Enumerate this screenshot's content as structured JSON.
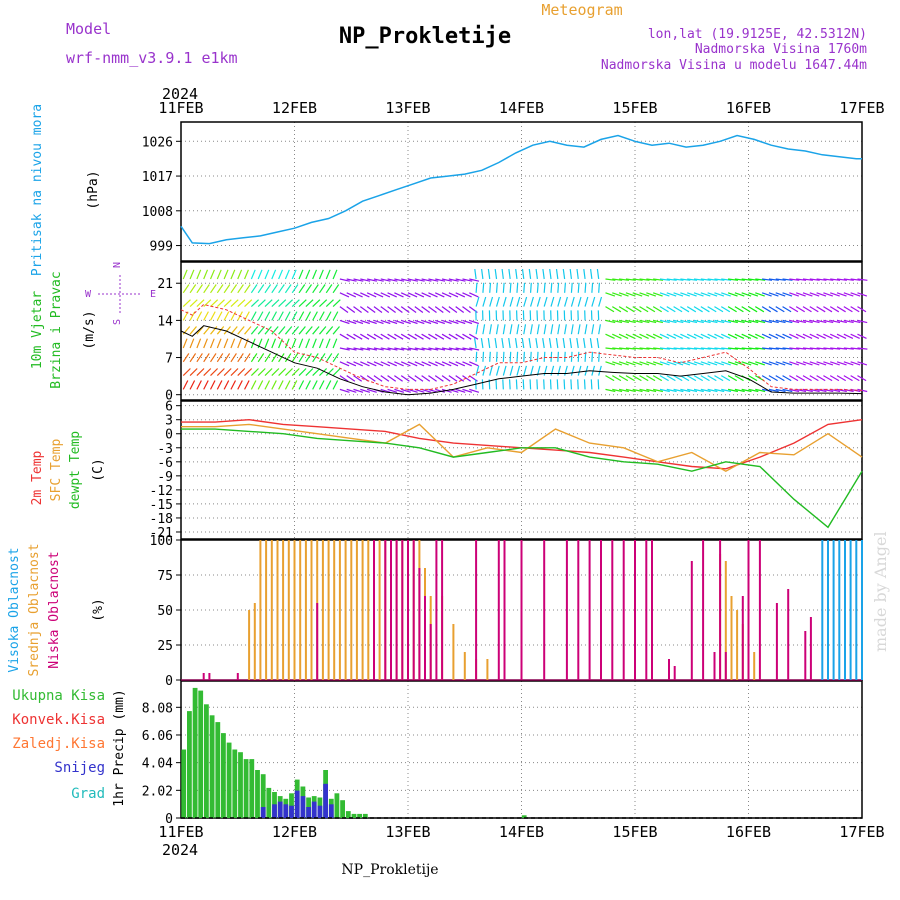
{
  "header": {
    "model_label": "Model",
    "model_name": "wrf-nmm_v3.9.1 e1km",
    "title": "NP_Prokletije",
    "meteogram": "Meteogram",
    "lonlat": "lon,lat (19.9125E, 42.5312N)",
    "altitude": "Nadmorska Visina 1760m",
    "model_altitude": "Nadmorska Visina u modelu 1647.44m",
    "watermark": "made by Angel",
    "footer_station": "NP_Prokletije"
  },
  "colors": {
    "pressure": "#1aa3e8",
    "wind_label": "#22bb22",
    "dir_label": "#9933cc",
    "temp2m": "#ee3333",
    "sfc": "#e8a030",
    "dew": "#22bb22",
    "high_cloud": "#1aa3e8",
    "mid_cloud": "#e8a030",
    "low_cloud": "#cc0077",
    "rain_total": "#33bb33",
    "rain_conv": "#ee3333",
    "rain_frozen": "#ff7733",
    "snow": "#3333cc",
    "hail": "#22bbbb"
  },
  "chart_data": {
    "x_axis": {
      "year": "2024",
      "ticks": [
        "11FEB",
        "12FEB",
        "13FEB",
        "14FEB",
        "15FEB",
        "16FEB",
        "17FEB"
      ],
      "range_days": [
        0,
        6
      ]
    },
    "panels": [
      {
        "id": "pressure",
        "type": "line",
        "ylabel": [
          "Pritisak na nivou mora",
          "(hPa)"
        ],
        "yticks": [
          999,
          1008,
          1017,
          1026
        ],
        "ylim": [
          995,
          1031
        ],
        "series": [
          {
            "x": [
              0,
              0.1,
              0.25,
              0.4,
              0.55,
              0.7,
              0.85,
              1.0,
              1.15,
              1.3,
              1.45,
              1.6,
              1.75,
              1.9,
              2.05,
              2.2,
              2.35,
              2.5,
              2.65,
              2.8,
              2.95,
              3.1,
              3.25,
              3.4,
              3.55,
              3.7,
              3.85,
              4.0,
              4.15,
              4.3,
              4.45,
              4.6,
              4.75,
              4.9,
              5.05,
              5.2,
              5.35,
              5.5,
              5.65,
              5.8,
              5.95,
              6.0
            ],
            "y": [
              1004,
              999.7,
              999.5,
              1000.5,
              1001,
              1001.5,
              1002.5,
              1003.5,
              1005,
              1006,
              1008,
              1010.5,
              1012,
              1013.5,
              1015,
              1016.5,
              1017,
              1017.5,
              1018.5,
              1020.5,
              1023,
              1025,
              1026,
              1025,
              1024.5,
              1026.5,
              1027.5,
              1026,
              1025,
              1025.5,
              1024.5,
              1025,
              1026,
              1027.5,
              1026.5,
              1025,
              1024,
              1023.5,
              1022.5,
              1022,
              1021.5,
              1021.5
            ]
          }
        ]
      },
      {
        "id": "wind",
        "type": "line",
        "ylabel": [
          "10m Vjetar",
          "Brzina i Pravac",
          "(m/s)"
        ],
        "direction_legend": {
          "w": "W",
          "e": "E",
          "n": "N",
          "s": "S"
        },
        "yticks": [
          0,
          7,
          14,
          21
        ],
        "ylim": [
          -1,
          25
        ],
        "series": [
          {
            "kind": "mean",
            "x": [
              0,
              0.1,
              0.2,
              0.4,
              0.6,
              0.8,
              1.0,
              1.2,
              1.4,
              1.6,
              1.8,
              2.0,
              2.2,
              2.4,
              2.6,
              2.8,
              3.0,
              3.2,
              3.4,
              3.6,
              3.8,
              4.0,
              4.2,
              4.4,
              4.6,
              4.8,
              5.0,
              5.2,
              5.4,
              5.6,
              5.8,
              6.0
            ],
            "y": [
              12,
              11,
              13,
              12,
              10,
              8,
              6,
              5,
              3,
              1.5,
              0.5,
              0,
              0.3,
              1,
              2,
              3,
              3.5,
              4,
              4,
              4.5,
              4.2,
              4,
              4,
              3.5,
              4,
              4.5,
              3,
              0.5,
              0.3,
              0.3,
              0.3,
              0.2
            ]
          },
          {
            "kind": "gust",
            "x": [
              0,
              0.1,
              0.2,
              0.4,
              0.6,
              0.8,
              1.0,
              1.2,
              1.4,
              1.6,
              1.8,
              2.0,
              2.2,
              2.4,
              2.6,
              2.8,
              3.0,
              3.2,
              3.4,
              3.6,
              3.8,
              4.0,
              4.2,
              4.4,
              4.6,
              4.8,
              5.0,
              5.2,
              5.4,
              5.6,
              5.8,
              6.0
            ],
            "y": [
              16,
              15,
              17,
              16,
              14,
              12,
              8,
              7,
              5,
              3,
              1.5,
              1,
              1,
              2,
              4,
              6,
              6,
              7,
              7,
              8,
              7.5,
              7,
              7,
              6,
              7,
              8,
              5,
              1.5,
              1,
              1,
              1,
              0.8
            ]
          }
        ]
      },
      {
        "id": "temperature",
        "type": "line",
        "ylabel": [
          "2m Temp",
          "SFC Temp",
          "dewpt Temp",
          "(C)"
        ],
        "yticks": [
          6,
          3,
          0,
          -3,
          -6,
          -9,
          -12,
          -15,
          -18,
          -21
        ],
        "ylim": [
          -22.5,
          7
        ],
        "series": [
          {
            "name": "2m Temp",
            "x": [
              0,
              0.3,
              0.6,
              0.9,
              1.2,
              1.5,
              1.8,
              2.1,
              2.4,
              2.7,
              3.0,
              3.3,
              3.6,
              3.9,
              4.2,
              4.5,
              4.8,
              5.1,
              5.4,
              5.7,
              6.0
            ],
            "y": [
              2.5,
              2.5,
              3,
              2,
              1.5,
              1,
              0.5,
              -1,
              -2,
              -2.5,
              -3,
              -3.5,
              -4,
              -5,
              -6,
              -7,
              -7.5,
              -5,
              -2,
              2,
              3
            ]
          },
          {
            "name": "SFC Temp",
            "x": [
              0,
              0.3,
              0.6,
              0.9,
              1.2,
              1.5,
              1.8,
              2.1,
              2.4,
              2.7,
              3.0,
              3.3,
              3.6,
              3.9,
              4.2,
              4.5,
              4.8,
              5.1,
              5.4,
              5.7,
              6.0
            ],
            "y": [
              1.5,
              1.5,
              2,
              1,
              0,
              -1,
              -2,
              2,
              -5,
              -3,
              -4,
              1,
              -2,
              -3,
              -6,
              -4,
              -8,
              -4,
              -4.5,
              0,
              -5
            ]
          },
          {
            "name": "dewpt Temp",
            "x": [
              0,
              0.3,
              0.6,
              0.9,
              1.2,
              1.5,
              1.8,
              2.1,
              2.4,
              2.7,
              3.0,
              3.3,
              3.6,
              3.9,
              4.2,
              4.5,
              4.8,
              5.1,
              5.4,
              5.7,
              6.0
            ],
            "y": [
              1,
              1,
              0.5,
              0,
              -1,
              -1.5,
              -2,
              -3,
              -5,
              -4,
              -3,
              -3,
              -5,
              -6,
              -6.5,
              -8,
              -6,
              -7,
              -14,
              -20,
              -8
            ]
          }
        ]
      },
      {
        "id": "clouds",
        "type": "bar",
        "ylabel": [
          "Visoka Oblacnost",
          "Srednja Oblacnost",
          "Niska Oblacnost",
          "(%)"
        ],
        "yticks": [
          0,
          25,
          50,
          75,
          100
        ],
        "ylim": [
          0,
          100
        ],
        "series": [
          {
            "name": "Srednja Oblacnost",
            "color_key": "mid_cloud",
            "x": [
              0.6,
              0.65,
              0.7,
              0.75,
              0.8,
              0.85,
              0.9,
              0.95,
              1.0,
              1.05,
              1.1,
              1.15,
              1.2,
              1.25,
              1.3,
              1.35,
              1.4,
              1.45,
              1.5,
              1.55,
              1.6,
              1.65,
              1.7,
              1.75,
              1.8,
              1.85,
              1.9,
              1.95,
              2.0,
              2.05,
              2.1,
              2.15,
              2.2,
              2.3,
              2.4,
              2.5,
              2.6,
              2.7,
              3.7,
              3.8,
              4.15,
              4.3,
              4.35,
              4.5,
              4.6,
              4.65,
              4.7,
              4.75,
              4.8,
              4.85,
              4.9,
              4.95,
              5.0,
              5.05,
              5.1,
              5.15,
              5.2
            ],
            "y": [
              50,
              55,
              100,
              100,
              100,
              100,
              100,
              100,
              100,
              100,
              100,
              100,
              100,
              100,
              100,
              100,
              100,
              100,
              100,
              100,
              100,
              100,
              100,
              100,
              100,
              100,
              100,
              100,
              100,
              100,
              100,
              80,
              60,
              60,
              40,
              20,
              15,
              15,
              0,
              0,
              0,
              0,
              0,
              0,
              0,
              0,
              0,
              90,
              85,
              60,
              50,
              40,
              30,
              20,
              0,
              0,
              0
            ]
          },
          {
            "name": "Niska Oblacnost",
            "color_key": "low_cloud",
            "x": [
              0.2,
              0.25,
              0.5,
              1.2,
              1.7,
              1.8,
              1.85,
              1.9,
              1.95,
              2.0,
              2.05,
              2.1,
              2.15,
              2.2,
              2.25,
              2.3,
              2.6,
              2.8,
              2.85,
              3.0,
              3.2,
              3.4,
              3.5,
              3.6,
              3.7,
              3.8,
              3.9,
              4.0,
              4.1,
              4.15,
              4.3,
              4.35,
              4.5,
              4.6,
              4.7,
              4.75,
              4.8,
              4.95,
              5.0,
              5.1,
              5.25,
              5.35,
              5.5,
              5.55
            ],
            "y": [
              5,
              5,
              5,
              55,
              100,
              100,
              100,
              100,
              100,
              100,
              100,
              80,
              60,
              40,
              100,
              100,
              100,
              100,
              100,
              100,
              100,
              100,
              100,
              100,
              100,
              100,
              100,
              100,
              100,
              100,
              15,
              10,
              85,
              100,
              20,
              100,
              20,
              60,
              100,
              100,
              55,
              65,
              35,
              45
            ]
          },
          {
            "name": "Visoka Oblacnost",
            "color_key": "high_cloud",
            "x": [
              5.65,
              5.7,
              5.75,
              5.8,
              5.85,
              5.9,
              5.95,
              6.0
            ],
            "y": [
              100,
              100,
              100,
              100,
              100,
              100,
              100,
              100
            ]
          }
        ]
      },
      {
        "id": "precip",
        "type": "bar",
        "ylabel": [
          "1hr Precip (mm)"
        ],
        "legend": [
          "Ukupna Kisa",
          "Konvek.Kisa",
          "Zaledj.Kisa",
          "Snijeg",
          "Grad"
        ],
        "yticks": [
          0,
          2.02,
          4.04,
          6.06,
          8.08
        ],
        "ylim": [
          0,
          10
        ],
        "series": [
          {
            "name": "Ukupna Kisa",
            "x": [
              0,
              0.05,
              0.1,
              0.15,
              0.2,
              0.25,
              0.3,
              0.35,
              0.4,
              0.45,
              0.5,
              0.55,
              0.6,
              0.65,
              0.7,
              0.75,
              0.8,
              0.85,
              0.9,
              0.95,
              1.0,
              1.05,
              1.1,
              1.15,
              1.2,
              1.25,
              1.3,
              1.35,
              1.4,
              1.45,
              1.5,
              1.55,
              1.6,
              3.0
            ],
            "y": [
              5.0,
              7.8,
              9.5,
              9.3,
              8.3,
              7.5,
              7.0,
              6.2,
              5.5,
              5.0,
              4.8,
              4.3,
              4.3,
              3.5,
              3.2,
              2.2,
              1.9,
              1.6,
              1.4,
              1.8,
              2.8,
              2.3,
              1.5,
              1.6,
              1.5,
              3.5,
              1.4,
              1.8,
              1.3,
              0.5,
              0.3,
              0.3,
              0.3,
              0.2
            ]
          },
          {
            "name": "Snijeg",
            "x": [
              0.7,
              0.8,
              0.85,
              0.9,
              0.95,
              1.0,
              1.05,
              1.1,
              1.15,
              1.2,
              1.25,
              1.3
            ],
            "y": [
              0.8,
              1.0,
              1.2,
              1.0,
              0.9,
              2.0,
              1.6,
              0.8,
              1.2,
              0.9,
              2.5,
              1.0
            ]
          }
        ]
      }
    ]
  }
}
